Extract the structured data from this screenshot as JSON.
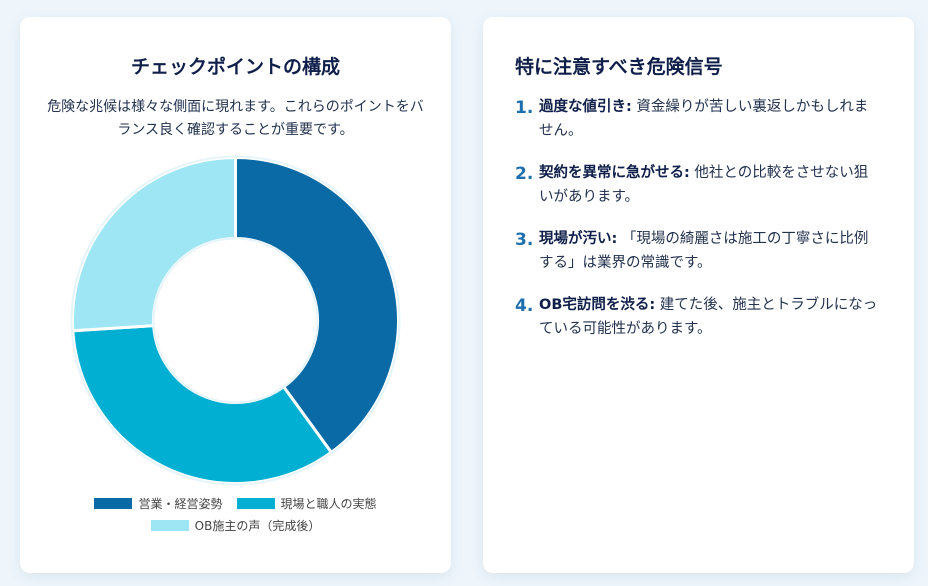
{
  "left_card": {
    "title": "チェックポイントの構成",
    "description": "危険な兆候は様々な側面に現れます。これらのポイントをバランス良く確認することが重要です。"
  },
  "right_card": {
    "title": "特に注意すべき危険信号",
    "signals": [
      {
        "num": "1.",
        "title": "過度な値引き:",
        "body": " 資金繰りが苦しい裏返しかもしれません。"
      },
      {
        "num": "2.",
        "title": "契約を異常に急がせる:",
        "body": " 他社との比較をさせない狙いがあります。"
      },
      {
        "num": "3.",
        "title": "現場が汚い:",
        "body": " 「現場の綺麗さは施工の丁寧さに比例する」は業界の常識です。"
      },
      {
        "num": "4.",
        "title": "OB宅訪問を渋る:",
        "body": " 建てた後、施主とトラブルになっている可能性があります。"
      }
    ]
  },
  "chart_data": {
    "type": "pie",
    "variant": "donut",
    "title": "",
    "categories": [
      "営業・経営姿勢",
      "現場と職人の実態",
      "OB施主の声（完成後）"
    ],
    "values": [
      40,
      34,
      26
    ],
    "colors": [
      "#0a6aa6",
      "#00afd2",
      "#9ee6f3"
    ],
    "legend_position": "bottom"
  }
}
